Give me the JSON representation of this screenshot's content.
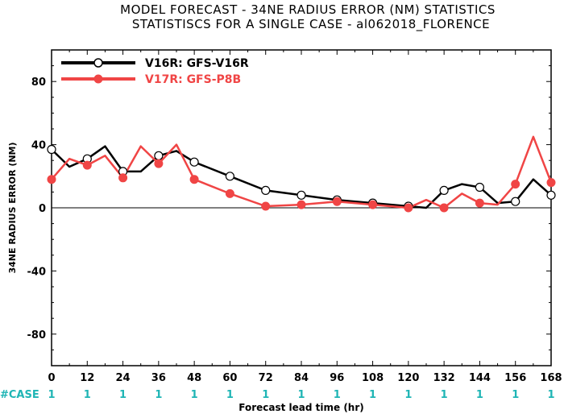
{
  "chart_data": {
    "type": "line",
    "title_line1": "MODEL FORECAST - 34NE RADIUS ERROR (NM) STATISTICS",
    "title_line2": "STATISTISCS FOR A SINGLE CASE - al062018_FLORENCE",
    "ylabel": "34NE RADIUS ERROR (NM)",
    "xlabel": "Forecast lead time (hr)",
    "case_label": "#CASE",
    "ylim": [
      -100,
      100
    ],
    "xlim": [
      0,
      168
    ],
    "x_ticks": [
      "0",
      "12",
      "24",
      "36",
      "48",
      "60",
      "72",
      "84",
      "96",
      "108",
      "120",
      "132",
      "144",
      "156",
      "168"
    ],
    "y_ticks": [
      "-80",
      "-40",
      "0",
      "40",
      "80"
    ],
    "case_counts": [
      "1",
      "1",
      "1",
      "1",
      "1",
      "1",
      "1",
      "1",
      "1",
      "1",
      "1",
      "1",
      "1",
      "1",
      "1"
    ],
    "case_color": "#1fb5b5",
    "series": [
      {
        "name": "V16R: GFS-V16R",
        "color": "#000000",
        "x": [
          0,
          6,
          12,
          18,
          24,
          30,
          36,
          42,
          48,
          60,
          72,
          84,
          96,
          108,
          120,
          126,
          132,
          138,
          144,
          150,
          156,
          162,
          168
        ],
        "y": [
          37,
          26,
          31,
          39,
          23,
          23,
          33,
          36,
          29,
          20,
          11,
          8,
          5,
          3,
          1,
          0,
          11,
          15,
          13,
          3,
          4,
          18,
          8
        ],
        "markers_at": [
          0,
          12,
          24,
          36,
          48,
          60,
          72,
          84,
          96,
          108,
          120,
          132,
          144,
          156,
          168
        ]
      },
      {
        "name": "V17R: GFS-P8B",
        "color": "#f04545",
        "x": [
          0,
          6,
          12,
          18,
          24,
          30,
          36,
          42,
          48,
          60,
          72,
          84,
          96,
          108,
          120,
          126,
          132,
          138,
          144,
          150,
          156,
          162,
          168
        ],
        "y": [
          18,
          31,
          27,
          33,
          19,
          39,
          28,
          40,
          18,
          9,
          1,
          2,
          4,
          2,
          0,
          5,
          0,
          9,
          3,
          2,
          15,
          45,
          16
        ],
        "markers_at": [
          0,
          12,
          24,
          36,
          48,
          60,
          72,
          84,
          96,
          108,
          120,
          132,
          144,
          156,
          168
        ]
      }
    ],
    "legend_position": "top-left"
  }
}
